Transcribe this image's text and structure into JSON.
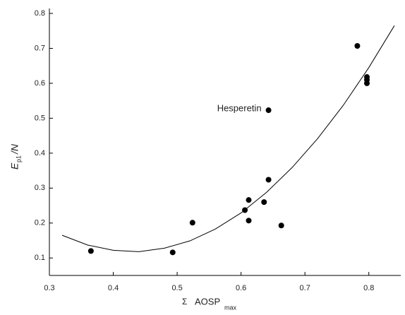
{
  "chart_data": {
    "type": "scatter",
    "x_label": {
      "symbol": "Σ",
      "text": "AOSP",
      "subscript": "max"
    },
    "y_label": {
      "text": "E",
      "subscript": "p1",
      "suffix": "/N"
    },
    "series": [
      {
        "x": [
          0.365,
          0.493,
          0.524,
          0.606,
          0.612,
          0.612,
          0.636,
          0.643,
          0.663,
          0.643,
          0.782,
          0.797,
          0.797,
          0.797
        ],
        "values": [
          0.12,
          0.116,
          0.201,
          0.237,
          0.266,
          0.207,
          0.26,
          0.324,
          0.193,
          0.523,
          0.707,
          0.618,
          0.61,
          0.6
        ],
        "color": "#000000"
      }
    ],
    "fit": {
      "x": [
        0.32,
        0.36,
        0.4,
        0.44,
        0.48,
        0.52,
        0.56,
        0.6,
        0.64,
        0.68,
        0.72,
        0.76,
        0.8,
        0.84
      ],
      "values": [
        0.165,
        0.137,
        0.122,
        0.118,
        0.128,
        0.149,
        0.183,
        0.229,
        0.288,
        0.359,
        0.442,
        0.537,
        0.645,
        0.765
      ],
      "color": "#000000"
    },
    "annotations": [
      {
        "text": "Hesperetin",
        "series": 0,
        "point": 9
      }
    ],
    "xlim": [
      0.3,
      0.85
    ],
    "ylim": [
      0.05,
      0.8
    ],
    "xticks": [
      0.3,
      0.4,
      0.5,
      0.6,
      0.7,
      0.8
    ],
    "yticks": [
      0.1,
      0.2,
      0.3,
      0.4,
      0.5,
      0.6,
      0.7,
      0.8
    ]
  }
}
